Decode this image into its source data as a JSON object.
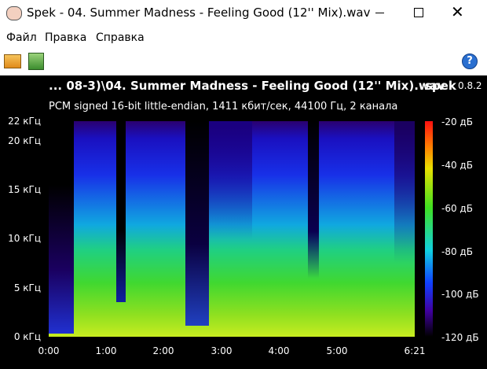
{
  "window": {
    "title": "Spek - 04. Summer Madness - Feeling Good (12'' Mix).wav"
  },
  "menu": [
    "Файл",
    "Правка",
    "Справка"
  ],
  "header": {
    "filename": "... 08-3)\\04. Summer Madness - Feeling Good (12'' Mix).wav",
    "app": "spek",
    "version": "0.8.2",
    "info": "PCM signed 16-bit little-endian, 1411 кбит/сек, 44100 Гц, 2 канала"
  },
  "frequency_labels": [
    "22 кГц",
    "20 кГц",
    "15 кГц",
    "10 кГц",
    "5 кГц",
    "0 кГц"
  ],
  "time_labels": [
    "0:00",
    "1:00",
    "2:00",
    "3:00",
    "4:00",
    "5:00",
    "6:21"
  ],
  "level_labels": [
    "-20 дБ",
    "-40 дБ",
    "-60 дБ",
    "-80 дБ",
    "-100 дБ",
    "-120 дБ"
  ]
}
